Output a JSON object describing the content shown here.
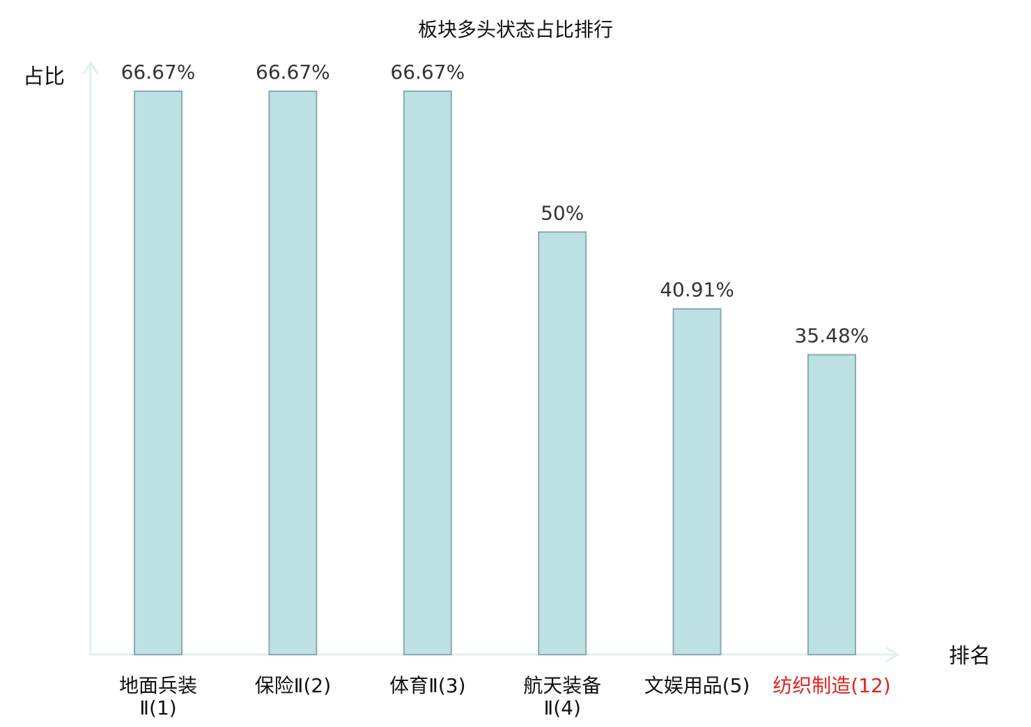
{
  "chart_data": {
    "type": "bar",
    "title": "板块多头状态占比排行",
    "ylabel": "占比",
    "xlabel": "排名",
    "ylim": [
      0,
      70
    ],
    "grid": false,
    "categories": [
      {
        "lines": [
          "地面兵装",
          "Ⅱ(1)"
        ],
        "highlight": false
      },
      {
        "lines": [
          "保险Ⅱ(2)"
        ],
        "highlight": false
      },
      {
        "lines": [
          "体育Ⅱ(3)"
        ],
        "highlight": false
      },
      {
        "lines": [
          "航天装备",
          "Ⅱ(4)"
        ],
        "highlight": false
      },
      {
        "lines": [
          "文娱用品(5)"
        ],
        "highlight": false
      },
      {
        "lines": [
          "纺织制造(12)"
        ],
        "highlight": true
      }
    ],
    "values": [
      66.67,
      66.67,
      66.67,
      50,
      40.91,
      35.48
    ],
    "value_labels": [
      "66.67%",
      "66.67%",
      "66.67%",
      "50%",
      "40.91%",
      "35.48%"
    ]
  },
  "colors": {
    "bar_fill": "#bde0e3",
    "bar_stroke": "#8aa9ad",
    "axis": "#def1ef",
    "text": "#111111",
    "value_text": "#333333",
    "highlight_text": "#e32020"
  }
}
